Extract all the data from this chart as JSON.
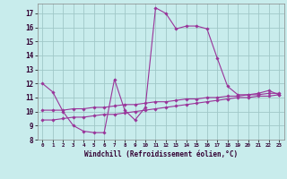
{
  "xlabel": "Windchill (Refroidissement éolien,°C)",
  "background_color": "#c8ecec",
  "grid_color": "#a0c8c8",
  "line_color": "#993399",
  "xlim": [
    -0.5,
    23.5
  ],
  "ylim": [
    8.0,
    17.7
  ],
  "yticks": [
    8,
    9,
    10,
    11,
    12,
    13,
    14,
    15,
    16,
    17
  ],
  "xticks": [
    0,
    1,
    2,
    3,
    4,
    5,
    6,
    7,
    8,
    9,
    10,
    11,
    12,
    13,
    14,
    15,
    16,
    17,
    18,
    19,
    20,
    21,
    22,
    23
  ],
  "series1_x": [
    0,
    1,
    2,
    3,
    4,
    5,
    6,
    7,
    8,
    9,
    10,
    11,
    12,
    13,
    14,
    15,
    16,
    17,
    18,
    19,
    20,
    21,
    22,
    23
  ],
  "series1_y": [
    12.0,
    11.4,
    10.0,
    9.0,
    8.6,
    8.5,
    8.5,
    12.3,
    10.1,
    9.4,
    10.3,
    17.4,
    17.0,
    15.9,
    16.1,
    16.1,
    15.9,
    13.8,
    11.8,
    11.2,
    11.2,
    11.3,
    11.5,
    11.2
  ],
  "series2_x": [
    0,
    1,
    2,
    3,
    4,
    5,
    6,
    7,
    8,
    9,
    10,
    11,
    12,
    13,
    14,
    15,
    16,
    17,
    18,
    19,
    20,
    21,
    22,
    23
  ],
  "series2_y": [
    10.1,
    10.1,
    10.1,
    10.2,
    10.2,
    10.3,
    10.3,
    10.4,
    10.5,
    10.5,
    10.6,
    10.7,
    10.7,
    10.8,
    10.9,
    10.9,
    11.0,
    11.0,
    11.1,
    11.1,
    11.2,
    11.2,
    11.3,
    11.3
  ],
  "series3_x": [
    0,
    1,
    2,
    3,
    4,
    5,
    6,
    7,
    8,
    9,
    10,
    11,
    12,
    13,
    14,
    15,
    16,
    17,
    18,
    19,
    20,
    21,
    22,
    23
  ],
  "series3_y": [
    9.4,
    9.4,
    9.5,
    9.6,
    9.6,
    9.7,
    9.8,
    9.8,
    9.9,
    10.0,
    10.1,
    10.2,
    10.3,
    10.4,
    10.5,
    10.6,
    10.7,
    10.8,
    10.9,
    11.0,
    11.0,
    11.1,
    11.1,
    11.2
  ]
}
